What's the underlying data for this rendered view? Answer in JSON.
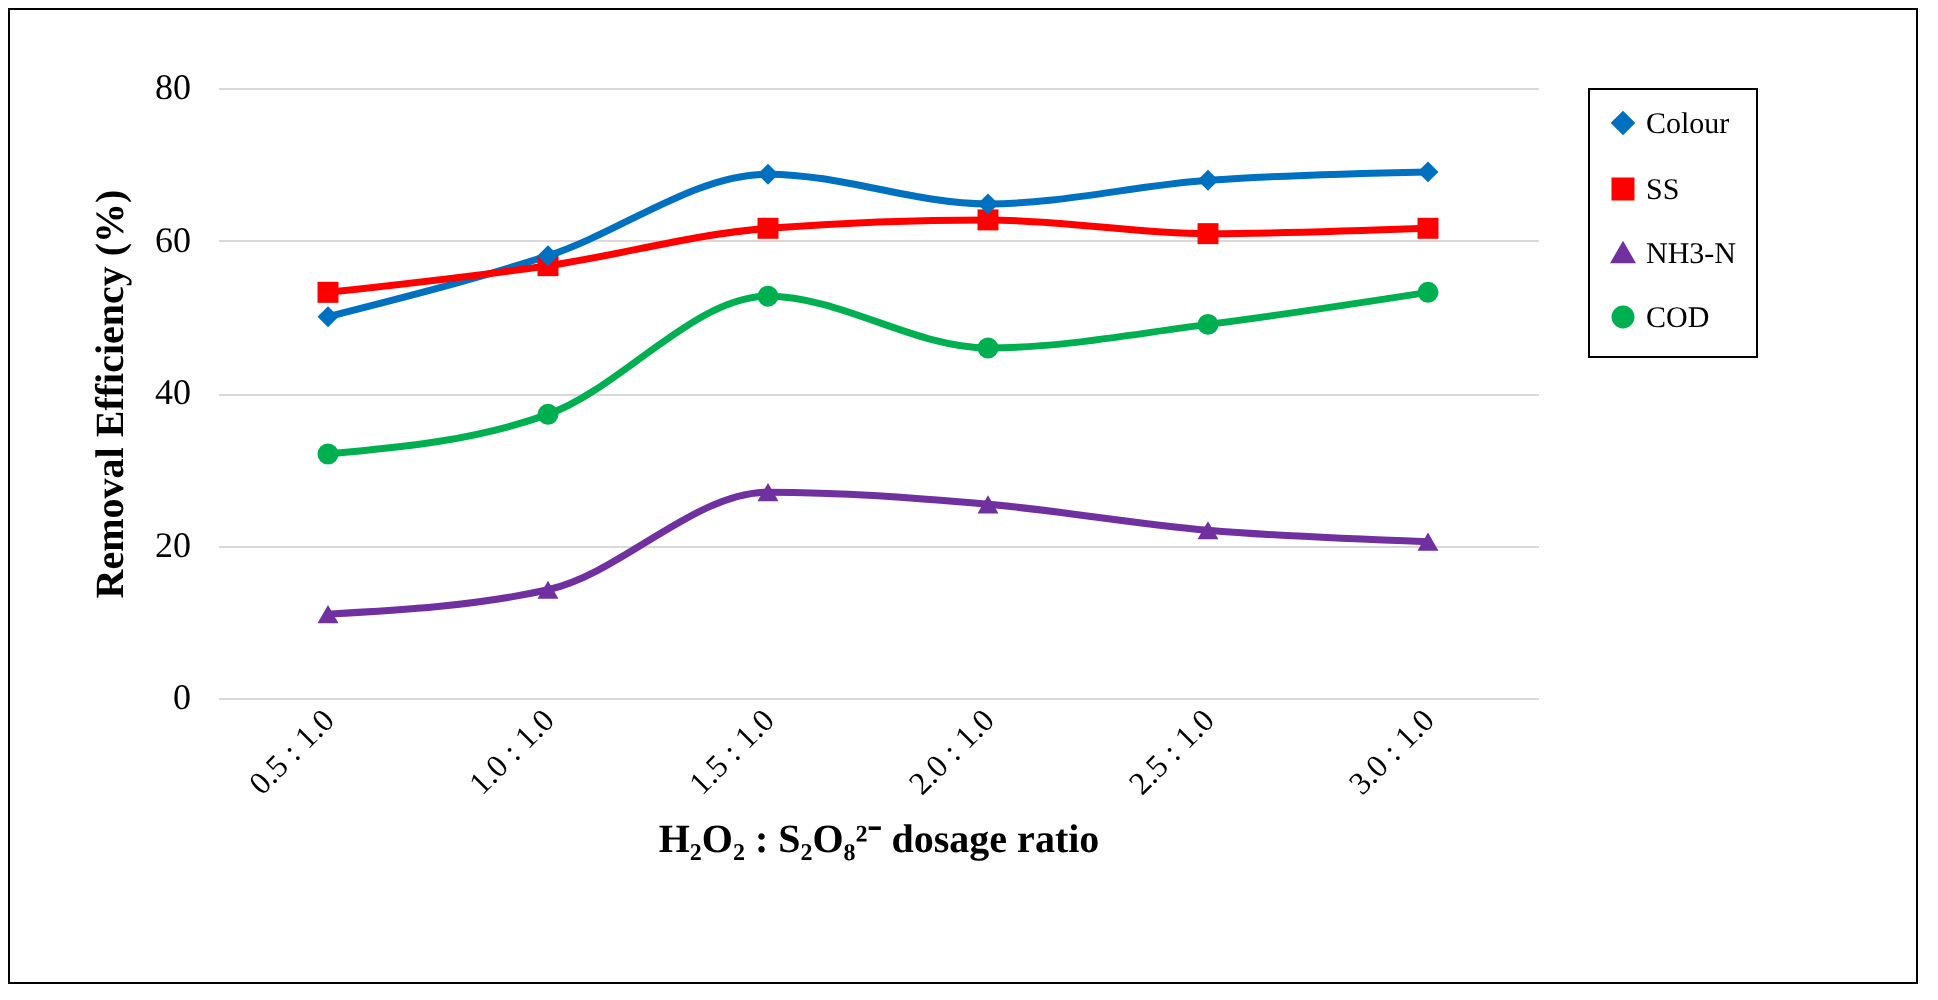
{
  "chart_data": {
    "type": "line",
    "xlabel": "H₂O₂ : S₂O₈²⁻ dosage ratio",
    "ylabel": "Removal Efficiency (%)",
    "categories": [
      "0.5 : 1.0",
      "1.0 : 1.0",
      "1.5 : 1.0",
      "2.0 : 1.0",
      "2.5 : 1.0",
      "3.0 : 1.0"
    ],
    "series": [
      {
        "name": "Colour",
        "color": "#0070c0",
        "marker": "diamond",
        "values": [
          50,
          58,
          68.7,
          64.8,
          67.9,
          69
        ]
      },
      {
        "name": "SS",
        "color": "#ff0000",
        "marker": "square",
        "values": [
          53.2,
          56.7,
          61.6,
          62.7,
          60.9,
          61.6
        ]
      },
      {
        "name": "NH3-N",
        "color": "#7030a0",
        "marker": "triangle",
        "values": [
          11,
          14.2,
          27,
          25.4,
          22,
          20.5
        ]
      },
      {
        "name": "COD",
        "color": "#00b050",
        "marker": "circle",
        "values": [
          32,
          37.2,
          52.7,
          45.9,
          49,
          53.2
        ]
      }
    ],
    "ylim": [
      0,
      80
    ],
    "yticks": [
      0,
      20,
      40,
      60,
      80
    ],
    "grid": "y",
    "legend": "right"
  }
}
